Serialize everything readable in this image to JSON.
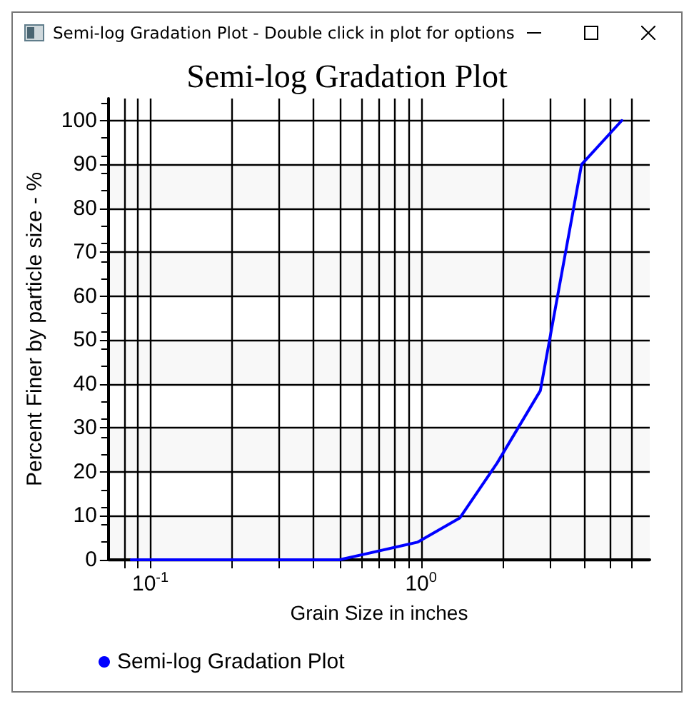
{
  "chart_data": {
    "type": "line",
    "title": "Semi-log Gradation Plot",
    "annotations": [
      "Semi-log Gradation Plot - Double click in plot for options"
    ],
    "xlabel": "Grain Size in inches",
    "ylabel": "Percent Finer by particle size - %",
    "x": [
      0.085,
      0.5,
      0.97,
      1.39,
      1.91,
      2.76,
      3.92,
      5.52
    ],
    "series": [
      {
        "name": "Semi-log Gradation Plot",
        "color": "#0000ff",
        "values": [
          0,
          0,
          4,
          9.5,
          22,
          38.5,
          90,
          100
        ]
      }
    ],
    "log": "x",
    "xlim": [
      0.07,
      7
    ],
    "ylim": [
      0,
      105
    ],
    "xticks": [
      {
        "value": 0.08,
        "label": null
      },
      {
        "value": 0.09,
        "label": null
      },
      {
        "value": 0.1,
        "label": "10$^{-1}$"
      },
      {
        "value": 0.2,
        "label": null
      },
      {
        "value": 0.3,
        "label": null
      },
      {
        "value": 0.4,
        "label": null
      },
      {
        "value": 0.5,
        "label": null
      },
      {
        "value": 0.6,
        "label": null
      },
      {
        "value": 0.7,
        "label": null
      },
      {
        "value": 0.8,
        "label": null
      },
      {
        "value": 0.9,
        "label": null
      },
      {
        "value": 1,
        "label": "10$^{0}$"
      },
      {
        "value": 2,
        "label": null
      },
      {
        "value": 3,
        "label": null
      },
      {
        "value": 4,
        "label": null
      },
      {
        "value": 5,
        "label": null
      },
      {
        "value": 6,
        "label": null
      }
    ],
    "yticks": [
      0,
      10,
      20,
      30,
      40,
      50,
      60,
      70,
      80,
      90,
      100
    ],
    "grid": true,
    "legend": "bottom left",
    "marker": "none",
    "line_style": "solid"
  }
}
